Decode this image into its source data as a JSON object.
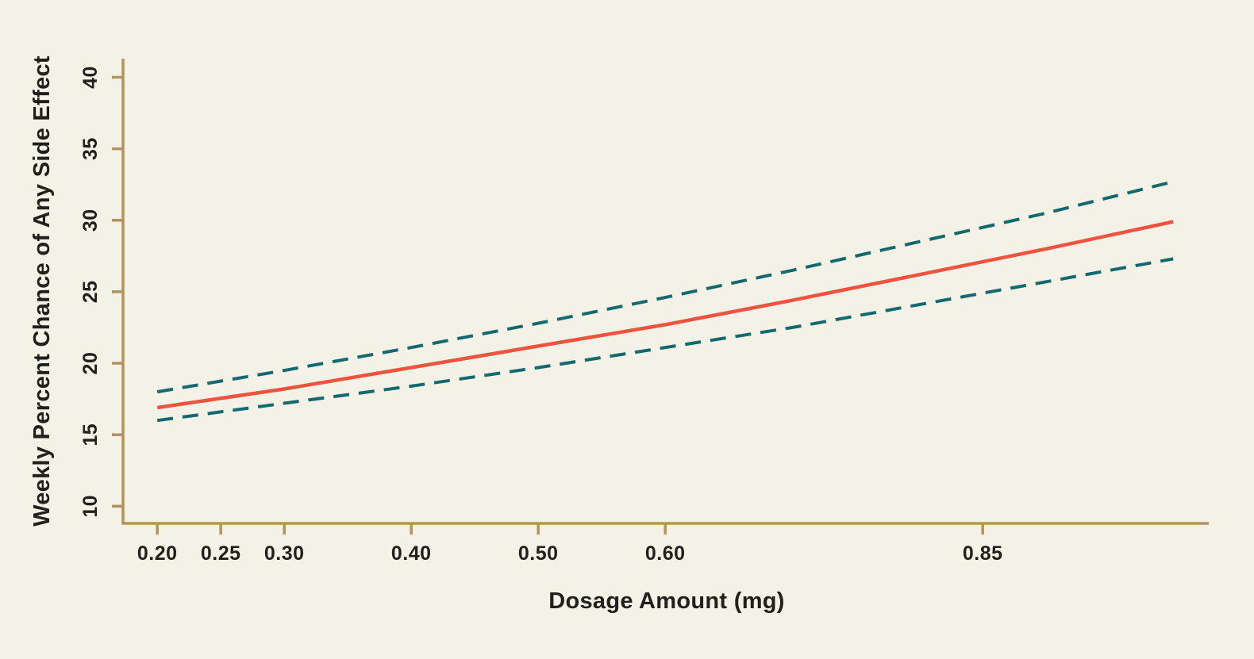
{
  "chart_data": {
    "type": "line",
    "title": "",
    "xlabel": "Dosage Amount (mg)",
    "ylabel": "Weekly Percent Chance of Any Side Effect",
    "x": [
      0.2,
      0.3,
      0.4,
      0.5,
      0.6,
      0.7,
      0.8,
      0.9,
      1.0
    ],
    "series": [
      {
        "name": "estimate",
        "style": "solid",
        "color": "#ee5340",
        "values": [
          16.9,
          18.2,
          19.7,
          21.2,
          22.7,
          24.4,
          26.2,
          28.0,
          29.9
        ]
      },
      {
        "name": "upper-confidence-bound",
        "style": "dashed",
        "color": "#14686f",
        "values": [
          18.0,
          19.5,
          21.1,
          22.8,
          24.6,
          26.5,
          28.5,
          30.5,
          32.7
        ]
      },
      {
        "name": "lower-confidence-bound",
        "style": "dashed",
        "color": "#14686f",
        "values": [
          16.0,
          17.2,
          18.4,
          19.7,
          21.1,
          22.5,
          24.1,
          25.7,
          27.3
        ]
      }
    ],
    "xticks": {
      "values": [
        0.2,
        0.25,
        0.3,
        0.4,
        0.5,
        0.6,
        0.85
      ],
      "labels": [
        "0.20",
        "0.25",
        "0.30",
        "0.40",
        "0.50",
        "0.60",
        "0.85"
      ]
    },
    "yticks": {
      "values": [
        10,
        15,
        20,
        25,
        30,
        35,
        40
      ],
      "labels": [
        "10",
        "15",
        "20",
        "25",
        "30",
        "35",
        "40"
      ]
    },
    "xlim": [
      0.173,
      1.028
    ],
    "ylim": [
      8.8,
      41.3
    ],
    "grid": false,
    "legend": null,
    "colors": {
      "background": "#f4f2e7",
      "axis": "#b2925f",
      "text": "#21201b",
      "estimate_line": "#ee5340",
      "confidence_line": "#14686f"
    }
  }
}
